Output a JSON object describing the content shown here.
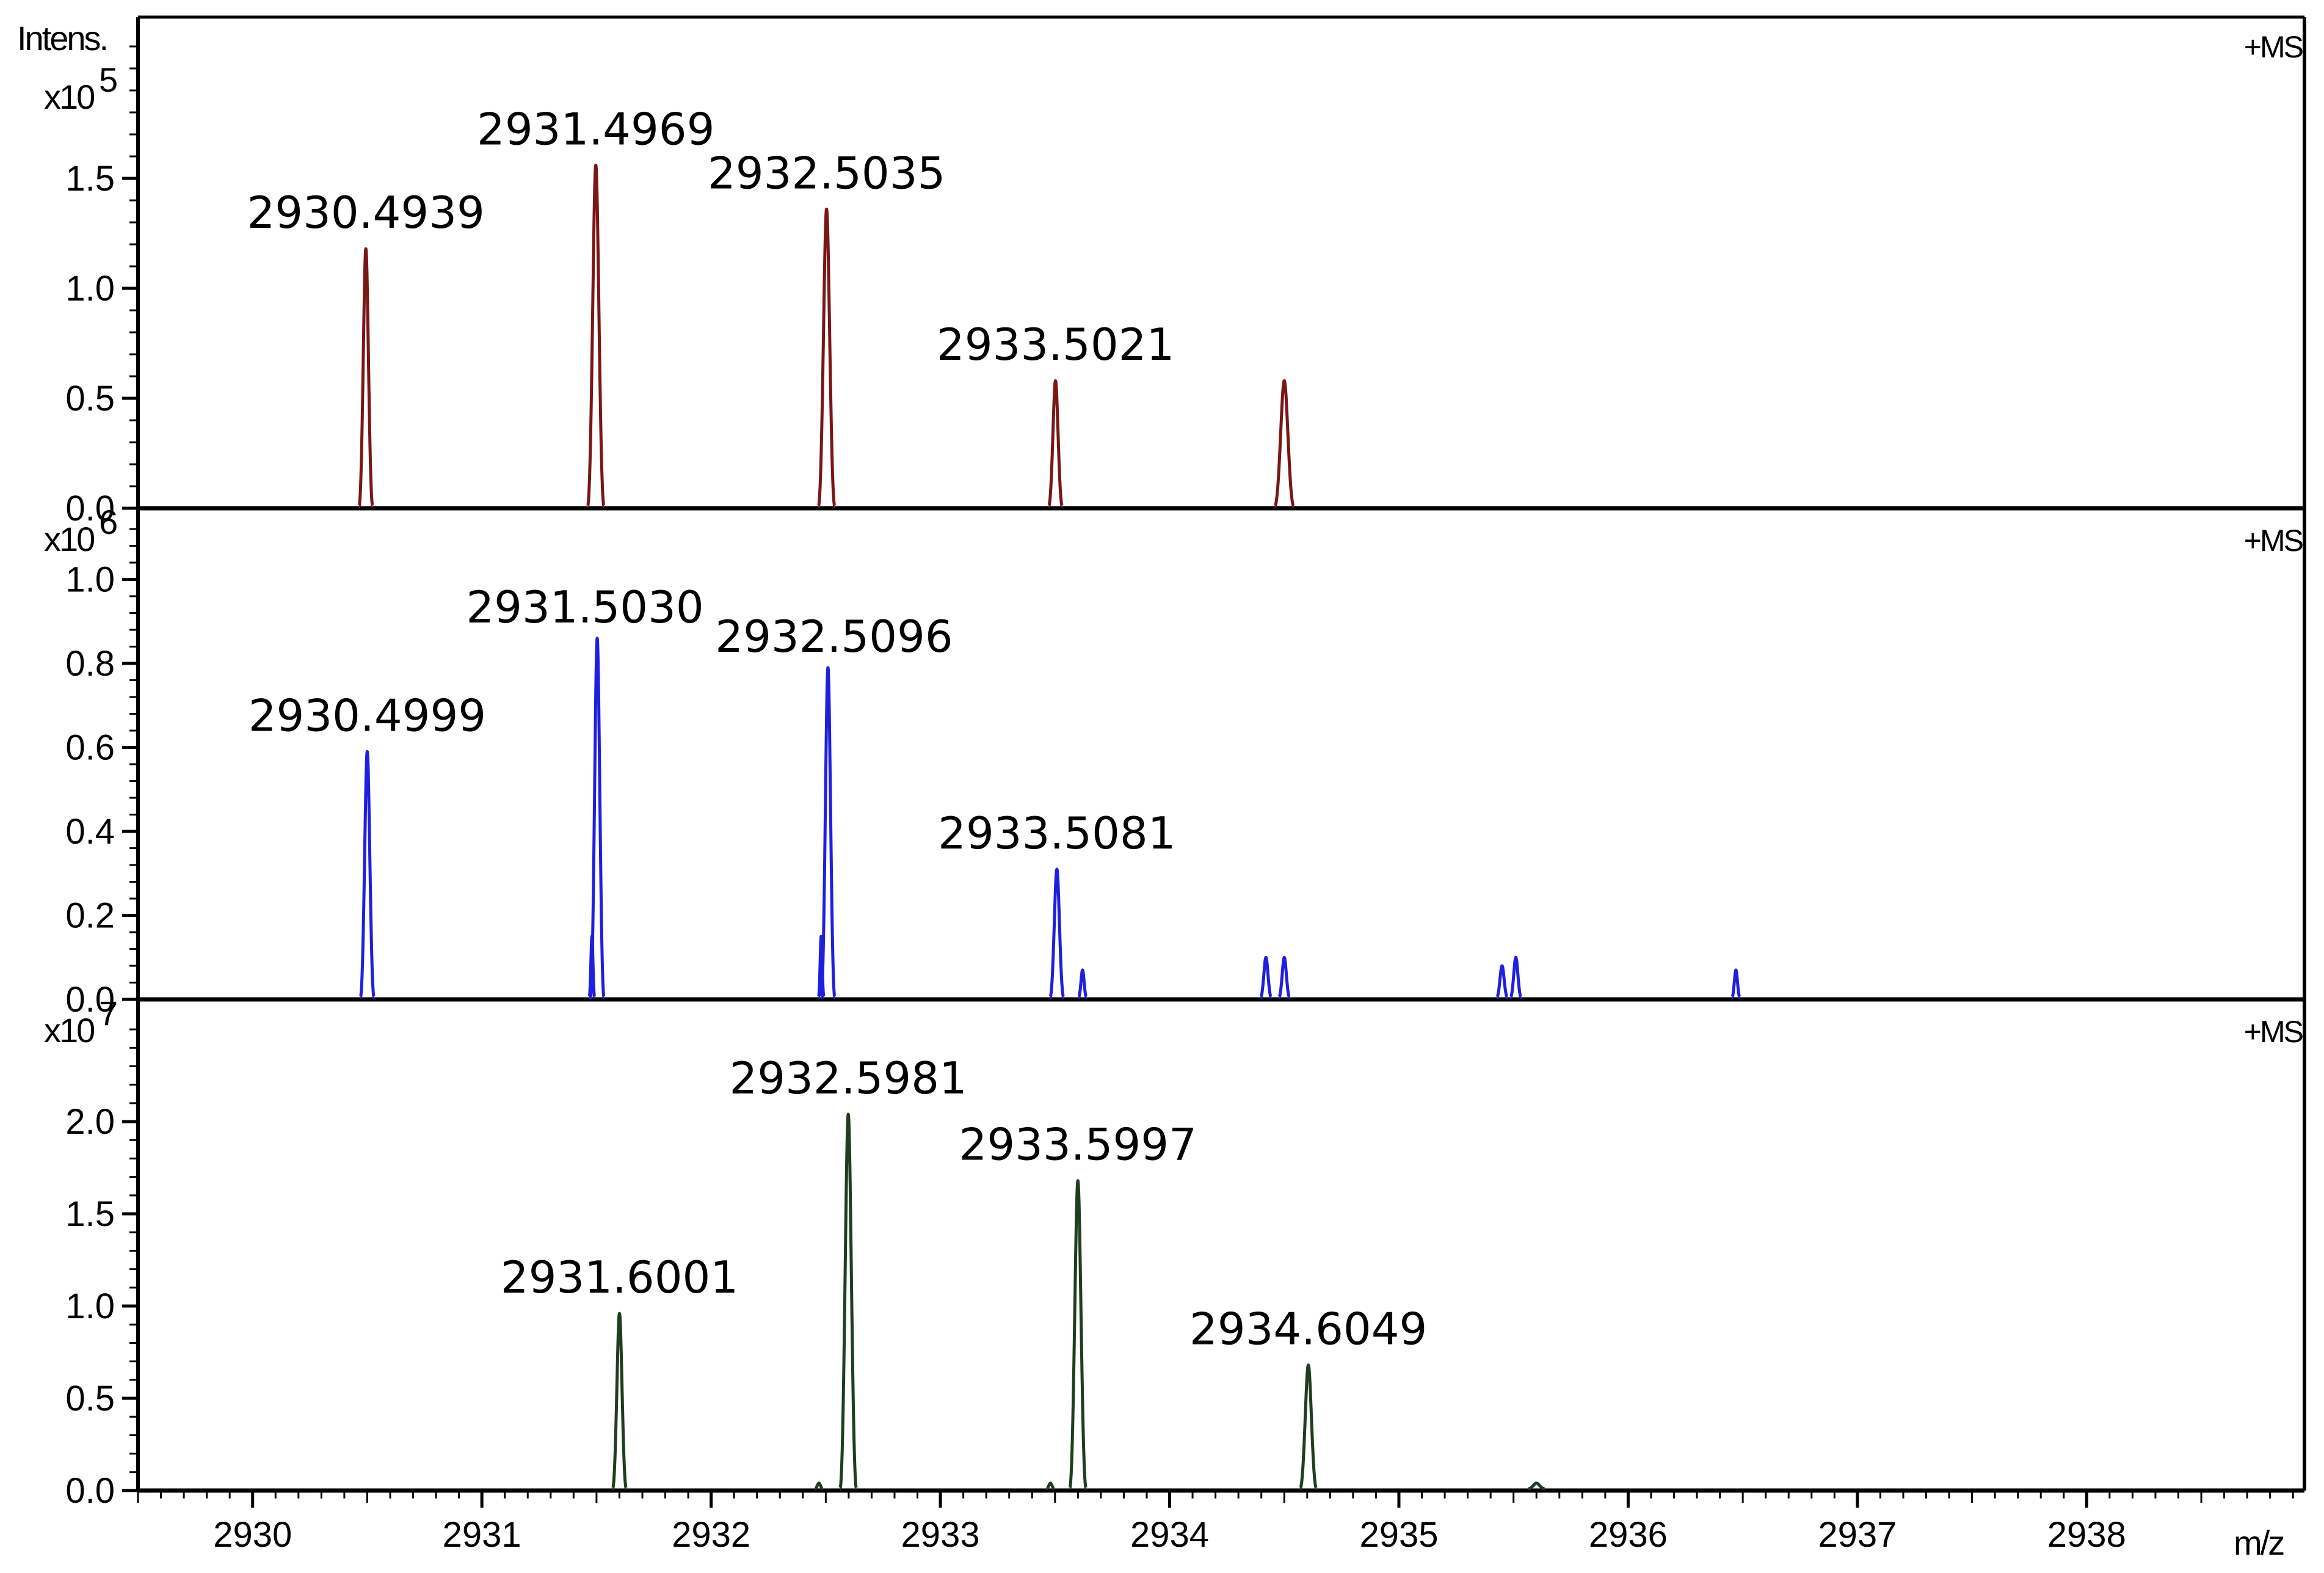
{
  "chart_data": {
    "type": "line",
    "x_axis": {
      "label": "m/z",
      "xlim": [
        2929.5,
        2938.95
      ],
      "ticks": [
        2930,
        2931,
        2932,
        2933,
        2934,
        2935,
        2936,
        2937,
        2938
      ],
      "tick_labels": [
        "2930",
        "2931",
        "2932",
        "2933",
        "2934",
        "2935",
        "2936",
        "2937",
        "2938"
      ]
    },
    "y_axis_title": "Intens.",
    "panels": [
      {
        "id": "top",
        "scan_label": "+MS",
        "exponent_base": "x10",
        "exponent_power": "5",
        "ylim": [
          0,
          2.15
        ],
        "ticks": [
          0,
          0.5,
          1.0,
          1.5
        ],
        "tick_labels": [
          "0.0",
          "0.5",
          "1.0",
          "1.5"
        ],
        "color": "#7a1616",
        "peaks": [
          {
            "mz": 2930.4939,
            "intensity": 1.18,
            "width": 0.025,
            "label": "2930.4939"
          },
          {
            "mz": 2931.4969,
            "intensity": 1.56,
            "width": 0.03,
            "label": "2931.4969"
          },
          {
            "mz": 2932.5035,
            "intensity": 1.36,
            "width": 0.03,
            "label": "2932.5035"
          },
          {
            "mz": 2933.5021,
            "intensity": 0.58,
            "width": 0.025,
            "label": "2933.5021"
          },
          {
            "mz": 2934.5,
            "intensity": 0.58,
            "width": 0.035,
            "label": ""
          }
        ]
      },
      {
        "id": "middle",
        "scan_label": "+MS",
        "exponent_base": "x10",
        "exponent_power": "6",
        "ylim": [
          0,
          1.12
        ],
        "ticks": [
          0,
          0.2,
          0.4,
          0.6,
          0.8,
          1.0
        ],
        "tick_labels": [
          "0.0",
          "0.2",
          "0.4",
          "0.6",
          "0.8",
          "1.0"
        ],
        "color": "#1f1fe0",
        "peaks": [
          {
            "mz": 2930.4999,
            "intensity": 0.59,
            "width": 0.025,
            "label": "2930.4999"
          },
          {
            "mz": 2931.503,
            "intensity": 0.86,
            "width": 0.025,
            "label": "2931.5030"
          },
          {
            "mz": 2931.48,
            "intensity": 0.15,
            "width": 0.01,
            "label": ""
          },
          {
            "mz": 2932.5096,
            "intensity": 0.79,
            "width": 0.025,
            "label": "2932.5096"
          },
          {
            "mz": 2932.48,
            "intensity": 0.15,
            "width": 0.01,
            "label": ""
          },
          {
            "mz": 2933.5081,
            "intensity": 0.31,
            "width": 0.025,
            "label": "2933.5081"
          },
          {
            "mz": 2933.62,
            "intensity": 0.07,
            "width": 0.015,
            "label": ""
          },
          {
            "mz": 2934.42,
            "intensity": 0.1,
            "width": 0.02,
            "label": ""
          },
          {
            "mz": 2934.5,
            "intensity": 0.1,
            "width": 0.02,
            "label": ""
          },
          {
            "mz": 2935.45,
            "intensity": 0.08,
            "width": 0.02,
            "label": ""
          },
          {
            "mz": 2935.51,
            "intensity": 0.1,
            "width": 0.02,
            "label": ""
          },
          {
            "mz": 2936.47,
            "intensity": 0.07,
            "width": 0.015,
            "label": ""
          }
        ]
      },
      {
        "id": "bottom",
        "scan_label": "+MS",
        "exponent_base": "x10",
        "exponent_power": "7",
        "ylim": [
          0,
          2.55
        ],
        "ticks": [
          0,
          0.5,
          1.0,
          1.5,
          2.0
        ],
        "tick_labels": [
          "0.0",
          "0.5",
          "1.0",
          "1.5",
          "2.0"
        ],
        "color": "#1f3d1f",
        "peaks": [
          {
            "mz": 2931.6001,
            "intensity": 0.96,
            "width": 0.025,
            "label": "2931.6001"
          },
          {
            "mz": 2932.5981,
            "intensity": 2.04,
            "width": 0.03,
            "label": "2932.5981"
          },
          {
            "mz": 2932.47,
            "intensity": 0.04,
            "width": 0.015,
            "label": ""
          },
          {
            "mz": 2933.5997,
            "intensity": 1.68,
            "width": 0.03,
            "label": "2933.5997"
          },
          {
            "mz": 2933.48,
            "intensity": 0.04,
            "width": 0.015,
            "label": ""
          },
          {
            "mz": 2934.6049,
            "intensity": 0.68,
            "width": 0.03,
            "label": "2934.6049"
          },
          {
            "mz": 2935.6,
            "intensity": 0.04,
            "width": 0.03,
            "label": ""
          }
        ]
      }
    ]
  }
}
